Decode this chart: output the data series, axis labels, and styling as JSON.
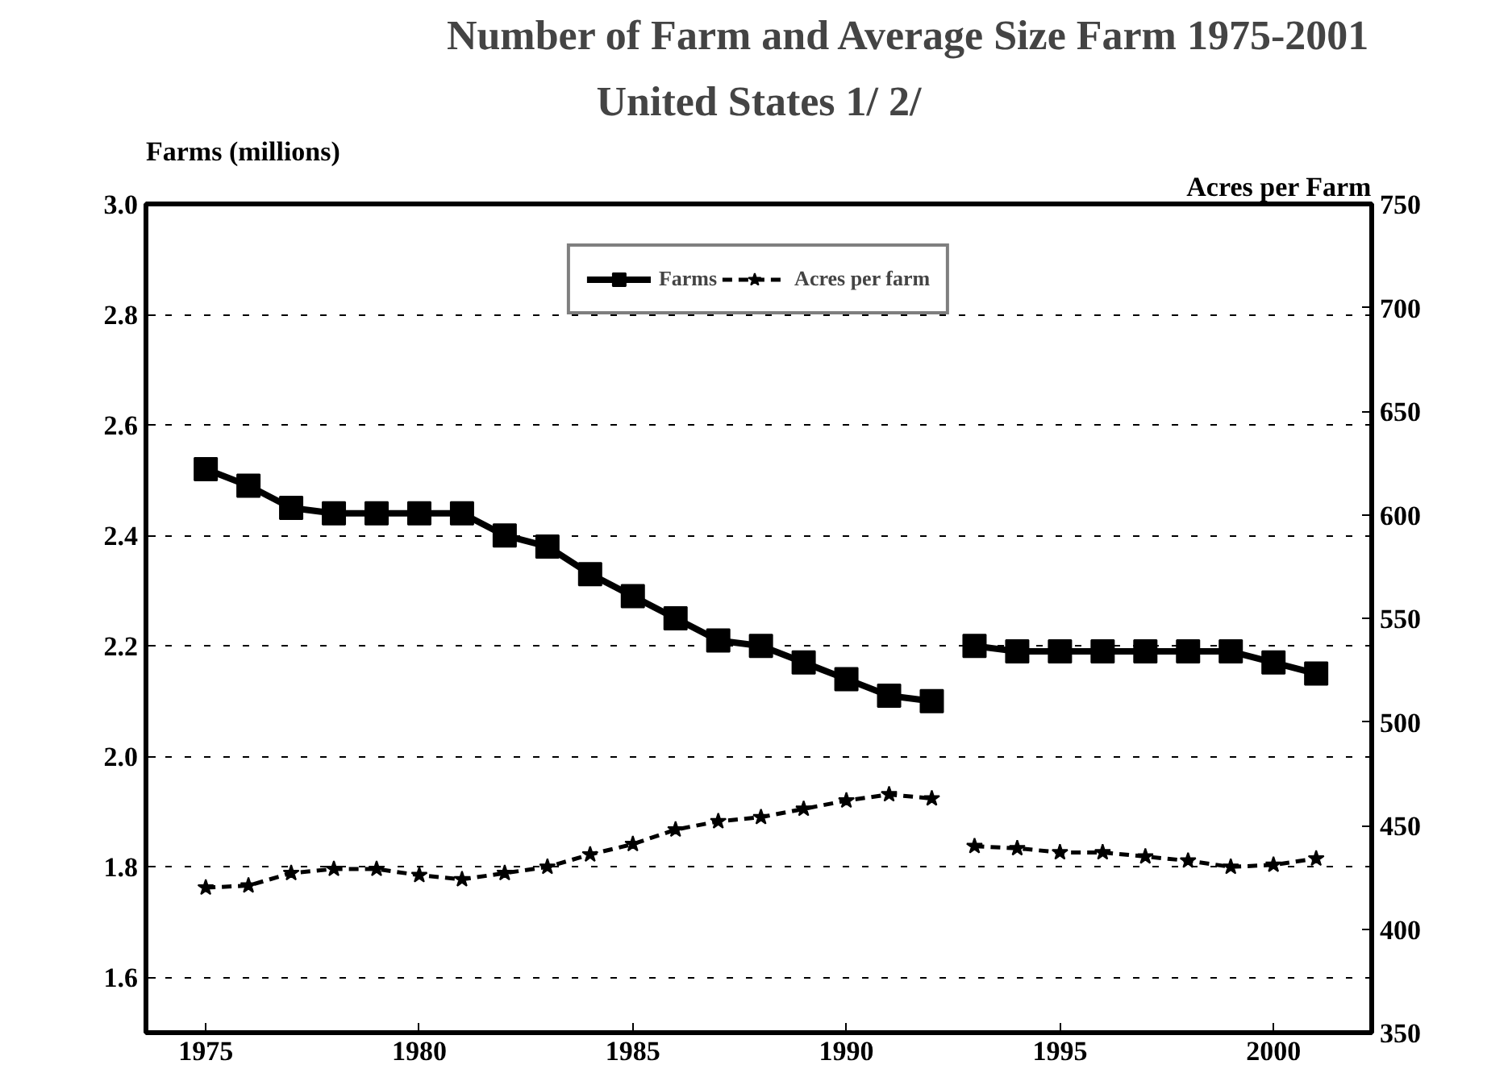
{
  "chart_data": {
    "type": "line",
    "title": "Number of Farm and Average Size Farm 1975-2001",
    "subtitle": "United States 1/ 2/",
    "ylabel": "Farms (millions)",
    "y2label": "Acres per Farm",
    "x": [
      1975,
      1976,
      1977,
      1978,
      1979,
      1980,
      1981,
      1982,
      1983,
      1984,
      1985,
      1986,
      1987,
      1988,
      1989,
      1990,
      1991,
      1992,
      1992.5,
      1993,
      1994,
      1995,
      1996,
      1997,
      1998,
      1999,
      2000,
      2001
    ],
    "series": [
      {
        "name": "Farms",
        "color": "#000000",
        "marker": "square",
        "line_style": "solid",
        "values": [
          2.52,
          2.49,
          2.45,
          2.44,
          2.44,
          2.44,
          2.44,
          2.4,
          2.38,
          2.33,
          2.29,
          2.25,
          2.21,
          2.2,
          2.17,
          2.14,
          2.11,
          2.1,
          null,
          2.2,
          2.19,
          2.19,
          2.19,
          2.19,
          2.19,
          2.19,
          2.17,
          2.15
        ]
      },
      {
        "name": "Acres per farm",
        "color": "#000000",
        "marker": "star",
        "line_style": "dashed",
        "axis": "y2",
        "values": [
          420,
          421,
          427,
          429,
          429,
          426,
          424,
          427,
          430,
          436,
          441,
          448,
          452,
          454,
          458,
          462,
          465,
          463,
          null,
          440,
          439,
          437,
          437,
          435,
          433,
          430,
          431,
          434
        ]
      }
    ],
    "xlim": [
      1973.6,
      2002.3
    ],
    "xticks": [
      1975,
      1980,
      1985,
      1990,
      1995,
      2000
    ],
    "ylim": [
      1.5,
      3.0
    ],
    "yticks": [
      {
        "value": 1.6,
        "label": "1.6"
      },
      {
        "value": 1.8,
        "label": "1.8"
      },
      {
        "value": 2.0,
        "label": "2.0"
      },
      {
        "value": 2.2,
        "label": "2.2"
      },
      {
        "value": 2.4,
        "label": "2.4"
      },
      {
        "value": 2.6,
        "label": "2.6"
      },
      {
        "value": 2.8,
        "label": "2.8"
      },
      {
        "value": 3.0,
        "label": "3.0"
      }
    ],
    "y2lim": [
      350,
      750
    ],
    "y2ticks": [
      350,
      400,
      450,
      500,
      550,
      600,
      650,
      700,
      750
    ],
    "grid": "y",
    "legend": "top"
  }
}
